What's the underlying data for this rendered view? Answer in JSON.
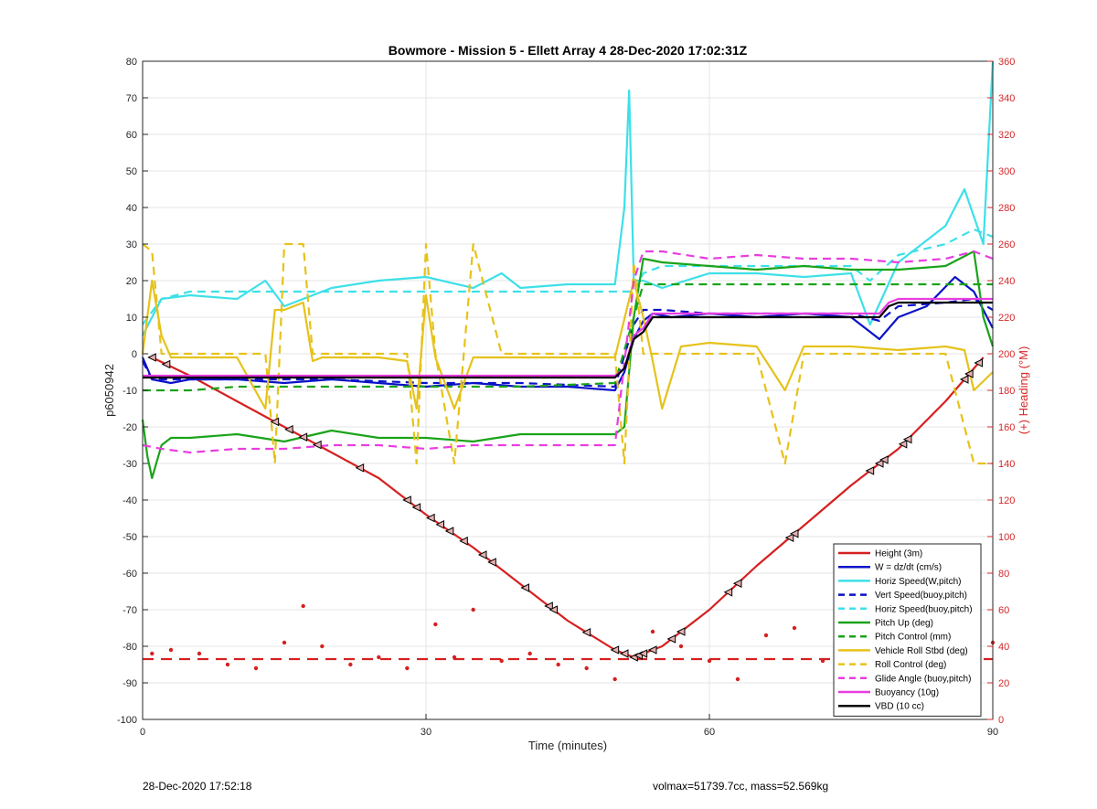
{
  "chart_data": {
    "type": "line",
    "title": "Bowmore - Mission 5 - Ellett Array 4 28-Dec-2020 17:02:31Z",
    "xlabel": "Time (minutes)",
    "ylabel_left": "p6050942",
    "ylabel_right": "(+) Heading (°M)",
    "xlim": [
      0,
      90
    ],
    "ylim_left": [
      -100,
      80
    ],
    "ylim_right": [
      0,
      360
    ],
    "x_ticks": [
      0,
      30,
      60,
      90
    ],
    "y_ticks_left": [
      -100,
      -90,
      -80,
      -70,
      -60,
      -50,
      -40,
      -30,
      -20,
      -10,
      0,
      10,
      20,
      30,
      40,
      50,
      60,
      70,
      80
    ],
    "y_ticks_right": [
      0,
      20,
      40,
      60,
      80,
      100,
      120,
      140,
      160,
      180,
      200,
      220,
      240,
      260,
      280,
      300,
      320,
      340,
      360
    ],
    "grid": true,
    "legend_position": "bottom-right",
    "series": [
      {
        "name": "Height (3m)",
        "axis": "left",
        "style": "solid",
        "color": "#d62020",
        "x": [
          1,
          5,
          10,
          15,
          20,
          25,
          30,
          35,
          40,
          45,
          50,
          52,
          55,
          60,
          65,
          70,
          75,
          80,
          85,
          89
        ],
        "y": [
          -1,
          -6,
          -13,
          -20,
          -27,
          -34,
          -44,
          -53,
          -63,
          -73,
          -81,
          -83,
          -80,
          -70,
          -58,
          -47,
          -36,
          -26,
          -13,
          -1
        ]
      },
      {
        "name": "W = dz/dt (cm/s)",
        "axis": "left",
        "style": "solid",
        "color": "#0b12c8",
        "x": [
          0,
          1,
          3,
          5,
          10,
          15,
          20,
          25,
          30,
          35,
          40,
          45,
          50,
          51,
          52,
          53,
          54,
          56,
          60,
          65,
          70,
          75,
          77,
          78,
          80,
          83,
          86,
          88,
          90
        ],
        "y": [
          -1,
          -7,
          -8,
          -7,
          -7,
          -8,
          -7,
          -8,
          -9,
          -8,
          -9,
          -9,
          -10,
          -5,
          4,
          9,
          11,
          10,
          11,
          10,
          11,
          10,
          6,
          4,
          10,
          13,
          21,
          17,
          7
        ]
      },
      {
        "name": "Horiz Speed(W,pitch)",
        "axis": "left",
        "style": "solid",
        "color": "#3de0e8",
        "x": [
          0,
          1,
          2,
          5,
          10,
          13,
          15,
          20,
          25,
          30,
          35,
          38,
          40,
          45,
          50,
          51,
          51.5,
          52,
          53,
          55,
          60,
          65,
          70,
          75,
          77,
          80,
          85,
          87,
          89,
          90
        ],
        "y": [
          5,
          10,
          15,
          16,
          15,
          20,
          13,
          18,
          20,
          21,
          18,
          22,
          18,
          19,
          19,
          40,
          72,
          20,
          20,
          18,
          22,
          22,
          21,
          22,
          8,
          25,
          35,
          45,
          30,
          80
        ]
      },
      {
        "name": "Vert Speed(buoy,pitch)",
        "axis": "left",
        "style": "dashed",
        "color": "#0b12c8",
        "x": [
          0,
          1,
          5,
          10,
          20,
          30,
          40,
          50,
          52,
          53,
          55,
          60,
          70,
          75,
          78,
          80,
          85,
          88,
          90
        ],
        "y": [
          -2,
          -7,
          -7,
          -7,
          -7,
          -8,
          -8,
          -9,
          8,
          12,
          12,
          11,
          11,
          11,
          9,
          13,
          14,
          15,
          12
        ]
      },
      {
        "name": "Horiz Speed(buoy,pitch)",
        "axis": "left",
        "style": "dashed",
        "color": "#3de0e8",
        "x": [
          0,
          2,
          5,
          10,
          20,
          30,
          40,
          50,
          52,
          53,
          55,
          60,
          70,
          75,
          77,
          80,
          85,
          88,
          90
        ],
        "y": [
          8,
          15,
          17,
          17,
          17,
          17,
          17,
          17,
          17,
          22,
          24,
          24,
          24,
          24,
          20,
          27,
          30,
          34,
          32
        ]
      },
      {
        "name": "Pitch Up (deg)",
        "axis": "left",
        "style": "solid",
        "color": "#1aa31a",
        "x": [
          0,
          0.5,
          1,
          2,
          3,
          5,
          10,
          15,
          20,
          25,
          30,
          35,
          40,
          45,
          50,
          51,
          52,
          53,
          55,
          60,
          65,
          70,
          75,
          80,
          85,
          88,
          89,
          90
        ],
        "y": [
          -18,
          -28,
          -34,
          -25,
          -23,
          -23,
          -22,
          -24,
          -21,
          -23,
          -23,
          -24,
          -22,
          -22,
          -22,
          -20,
          10,
          26,
          25,
          24,
          23,
          24,
          23,
          23,
          24,
          28,
          10,
          2
        ]
      },
      {
        "name": "Pitch Control (mm)",
        "axis": "left",
        "style": "dashed",
        "color": "#1aa31a",
        "x": [
          0,
          5,
          10,
          20,
          30,
          40,
          50,
          52,
          53,
          55,
          60,
          70,
          80,
          90
        ],
        "y": [
          -10,
          -10,
          -9,
          -9,
          -9,
          -9,
          -8,
          10,
          19,
          19,
          19,
          19,
          19,
          19
        ]
      },
      {
        "name": "Vehicle Roll Stbd (deg)",
        "axis": "left",
        "style": "solid",
        "color": "#e6c21a",
        "x": [
          0,
          1,
          2,
          3,
          5,
          10,
          13,
          14,
          15,
          17,
          18,
          19,
          20,
          25,
          28,
          29,
          30,
          31,
          33,
          35,
          40,
          45,
          50,
          52,
          53,
          54,
          55,
          57,
          60,
          65,
          68,
          70,
          75,
          80,
          85,
          87,
          88,
          90
        ],
        "y": [
          0,
          20,
          5,
          -1,
          -1,
          -1,
          -15,
          12,
          12,
          14,
          -2,
          -1,
          -1,
          -1,
          -2,
          -15,
          16,
          -1,
          -15,
          -1,
          -1,
          -1,
          -1,
          20,
          10,
          -2,
          -15,
          2,
          3,
          2,
          -10,
          2,
          2,
          1,
          2,
          1,
          -10,
          -5
        ]
      },
      {
        "name": "Roll Control (deg)",
        "axis": "left",
        "style": "dashed",
        "color": "#e6c21a",
        "x": [
          0,
          1,
          2,
          3,
          5,
          10,
          13,
          14,
          15,
          17,
          18,
          20,
          25,
          28,
          29,
          30,
          31,
          33,
          35,
          38,
          40,
          45,
          50,
          51,
          52,
          53,
          55,
          57,
          60,
          65,
          68,
          70,
          75,
          80,
          85,
          88,
          90
        ],
        "y": [
          30,
          28,
          0,
          0,
          0,
          0,
          0,
          -30,
          30,
          30,
          0,
          0,
          0,
          0,
          -30,
          30,
          0,
          -30,
          30,
          0,
          0,
          0,
          0,
          -30,
          25,
          0,
          0,
          0,
          0,
          0,
          -30,
          0,
          0,
          0,
          0,
          -30,
          -30
        ]
      },
      {
        "name": "Glide Angle (buoy,pitch)",
        "axis": "left",
        "style": "dashed",
        "color": "#e83de0",
        "x": [
          0,
          2,
          5,
          10,
          15,
          20,
          25,
          30,
          35,
          40,
          45,
          50,
          52,
          53,
          55,
          60,
          65,
          70,
          75,
          80,
          85,
          88,
          90
        ],
        "y": [
          -25,
          -26,
          -27,
          -26,
          -26,
          -25,
          -25,
          -26,
          -25,
          -25,
          -25,
          -25,
          20,
          28,
          28,
          26,
          27,
          26,
          26,
          25,
          26,
          28,
          26
        ]
      },
      {
        "name": "Buoyancy (10g)",
        "axis": "left",
        "style": "solid",
        "color": "#e83de0",
        "x": [
          0,
          10,
          20,
          30,
          40,
          50,
          51,
          52,
          53,
          54,
          60,
          70,
          75,
          78,
          79,
          80,
          85,
          90
        ],
        "y": [
          -6,
          -6,
          -6,
          -6,
          -6,
          -6,
          -4,
          5,
          7,
          11,
          11,
          11,
          11,
          11,
          14,
          15,
          15,
          15
        ]
      },
      {
        "name": "VBD (10 cc)",
        "axis": "left",
        "style": "solid",
        "color": "#000000",
        "x": [
          0,
          10,
          20,
          30,
          40,
          50,
          51,
          52,
          53,
          54,
          60,
          70,
          75,
          78,
          79,
          80,
          85,
          90
        ],
        "y": [
          -6.5,
          -6.5,
          -6.5,
          -6.5,
          -6.5,
          -6.5,
          -4,
          4,
          6,
          10,
          10,
          10,
          10,
          10,
          13,
          14,
          14,
          14
        ]
      },
      {
        "name": "Heading",
        "axis": "right",
        "style": "dots",
        "color": "#d62020",
        "x": [
          1,
          3,
          6,
          9,
          12,
          15,
          17,
          19,
          22,
          25,
          28,
          31,
          33,
          35,
          38,
          41,
          44,
          47,
          50,
          52,
          54,
          57,
          60,
          63,
          66,
          69,
          72,
          75,
          78,
          80,
          83,
          86,
          88,
          90
        ],
        "y": [
          36,
          38,
          36,
          30,
          28,
          42,
          62,
          40,
          30,
          34,
          28,
          52,
          34,
          60,
          32,
          36,
          30,
          28,
          22,
          34,
          48,
          40,
          32,
          22,
          46,
          50,
          32,
          24,
          38,
          34,
          42,
          46,
          38,
          42
        ]
      },
      {
        "name": "Mean Heading",
        "axis": "right",
        "style": "long-dash",
        "color": "#d62020",
        "x": [
          0,
          90
        ],
        "y": [
          33,
          33
        ]
      }
    ],
    "markers_on_height_x": [
      1,
      2.5,
      14,
      15.5,
      17,
      18.5,
      23,
      28,
      29,
      30.5,
      31.5,
      32.5,
      34,
      36,
      37,
      40.5,
      43,
      43.5,
      47,
      50,
      51,
      52,
      52.5,
      53,
      54,
      56,
      57,
      62,
      63,
      68.5,
      69,
      77,
      78,
      78.5,
      80.5,
      81,
      87,
      87.5,
      88.5
    ]
  },
  "footer": {
    "left": "28-Dec-2020 17:52:18",
    "right": "volmax=51739.7cc, mass=52.569kg"
  }
}
